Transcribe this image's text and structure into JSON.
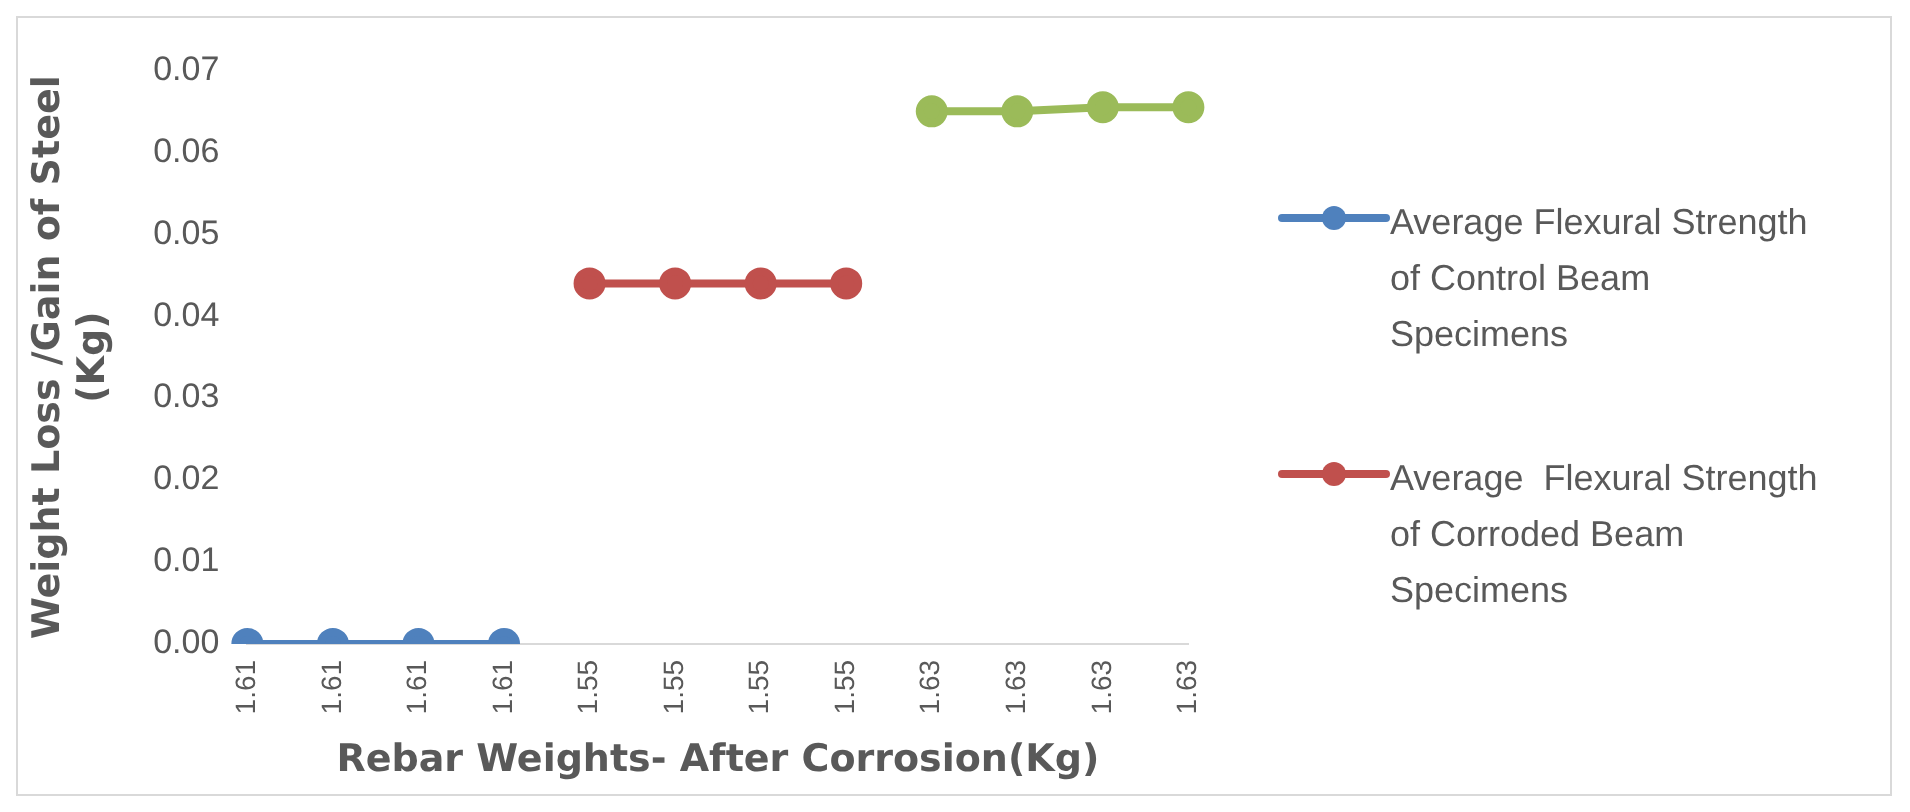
{
  "chart_data": {
    "type": "line",
    "xlabel": "Rebar Weights- After Corrosion(Kg)",
    "ylabel": "Weight Loss /Gain of Steel\n(Kg)",
    "categories": [
      "1.61",
      "1.61",
      "1.61",
      "1.61",
      "1.55",
      "1.55",
      "1.55",
      "1.55",
      "1.63",
      "1.63",
      "1.63",
      "1.63"
    ],
    "series": [
      {
        "name": "Average Flexural Strength of Control Beam Specimens",
        "color": "#4f81bd",
        "values": [
          0,
          0,
          0,
          0,
          null,
          null,
          null,
          null,
          null,
          null,
          null,
          null
        ]
      },
      {
        "name": "Average  Flexural Strength of Corroded Beam Specimens",
        "color": "#c0504d",
        "values": [
          null,
          null,
          null,
          null,
          0.044,
          0.044,
          0.044,
          0.044,
          null,
          null,
          null,
          null
        ]
      },
      {
        "color": "#9bbb59",
        "values": [
          null,
          null,
          null,
          null,
          null,
          null,
          null,
          null,
          0.065,
          0.065,
          0.0655,
          0.0655
        ]
      }
    ],
    "ylim": [
      0,
      0.07
    ],
    "yticks": [
      {
        "value": 0,
        "label": "0.00"
      },
      0.01,
      0.02,
      0.03,
      0.04,
      0.05,
      0.06,
      0.07
    ],
    "grid": false,
    "legend": "right",
    "marker": "circle",
    "line_style": "solid"
  }
}
